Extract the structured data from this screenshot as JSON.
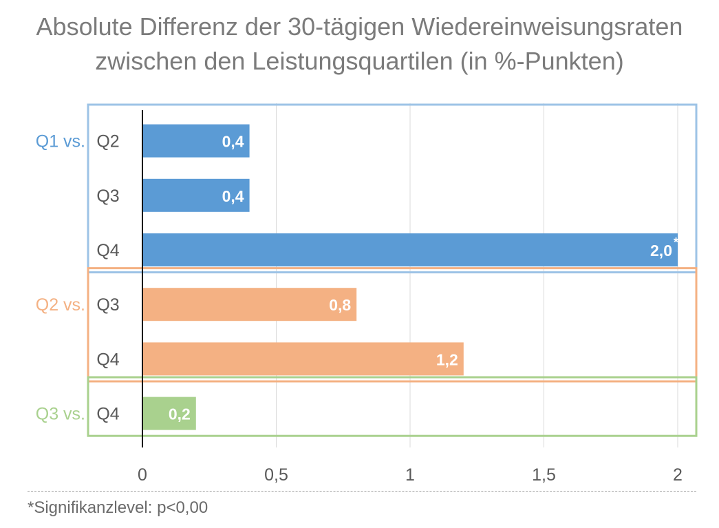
{
  "title_lines": [
    "Absolute Differenz der 30-tägigen Wiedereinweisungsraten",
    "zwischen den Leistungsquartilen (in %-Punkten)"
  ],
  "footnote": "*Signifikanzlevel: p<0,00",
  "chart_data": {
    "type": "bar",
    "orientation": "horizontal",
    "title": "Absolute Differenz der 30-tägigen Wiedereinweisungsraten zwischen den Leistungsquartilen (in %-Punkten)",
    "xlim": [
      0,
      2
    ],
    "xticks": [
      "0",
      "0,5",
      "1",
      "1,5",
      "2"
    ],
    "xtick_values": [
      0,
      0.5,
      1,
      1.5,
      2
    ],
    "grid": "vertical",
    "groups": [
      {
        "label": "Q1 vs.",
        "color": "#5b9bd5",
        "box_color": "#9dc3e6",
        "bars": [
          {
            "category": "Q2",
            "value": 0.4,
            "label": "0,4"
          },
          {
            "category": "Q3",
            "value": 0.4,
            "label": "0,4"
          },
          {
            "category": "Q4",
            "value": 2.0,
            "label": "2,0",
            "marker": "*"
          }
        ]
      },
      {
        "label": "Q2 vs.",
        "color": "#f4b183",
        "box_color": "#f4b183",
        "bars": [
          {
            "category": "Q3",
            "value": 0.8,
            "label": "0,8"
          },
          {
            "category": "Q4",
            "value": 1.2,
            "label": "1,2"
          }
        ]
      },
      {
        "label": "Q3 vs.",
        "color": "#a9d18e",
        "box_color": "#a9d18e",
        "bars": [
          {
            "category": "Q4",
            "value": 0.2,
            "label": "0,2"
          }
        ]
      }
    ]
  }
}
